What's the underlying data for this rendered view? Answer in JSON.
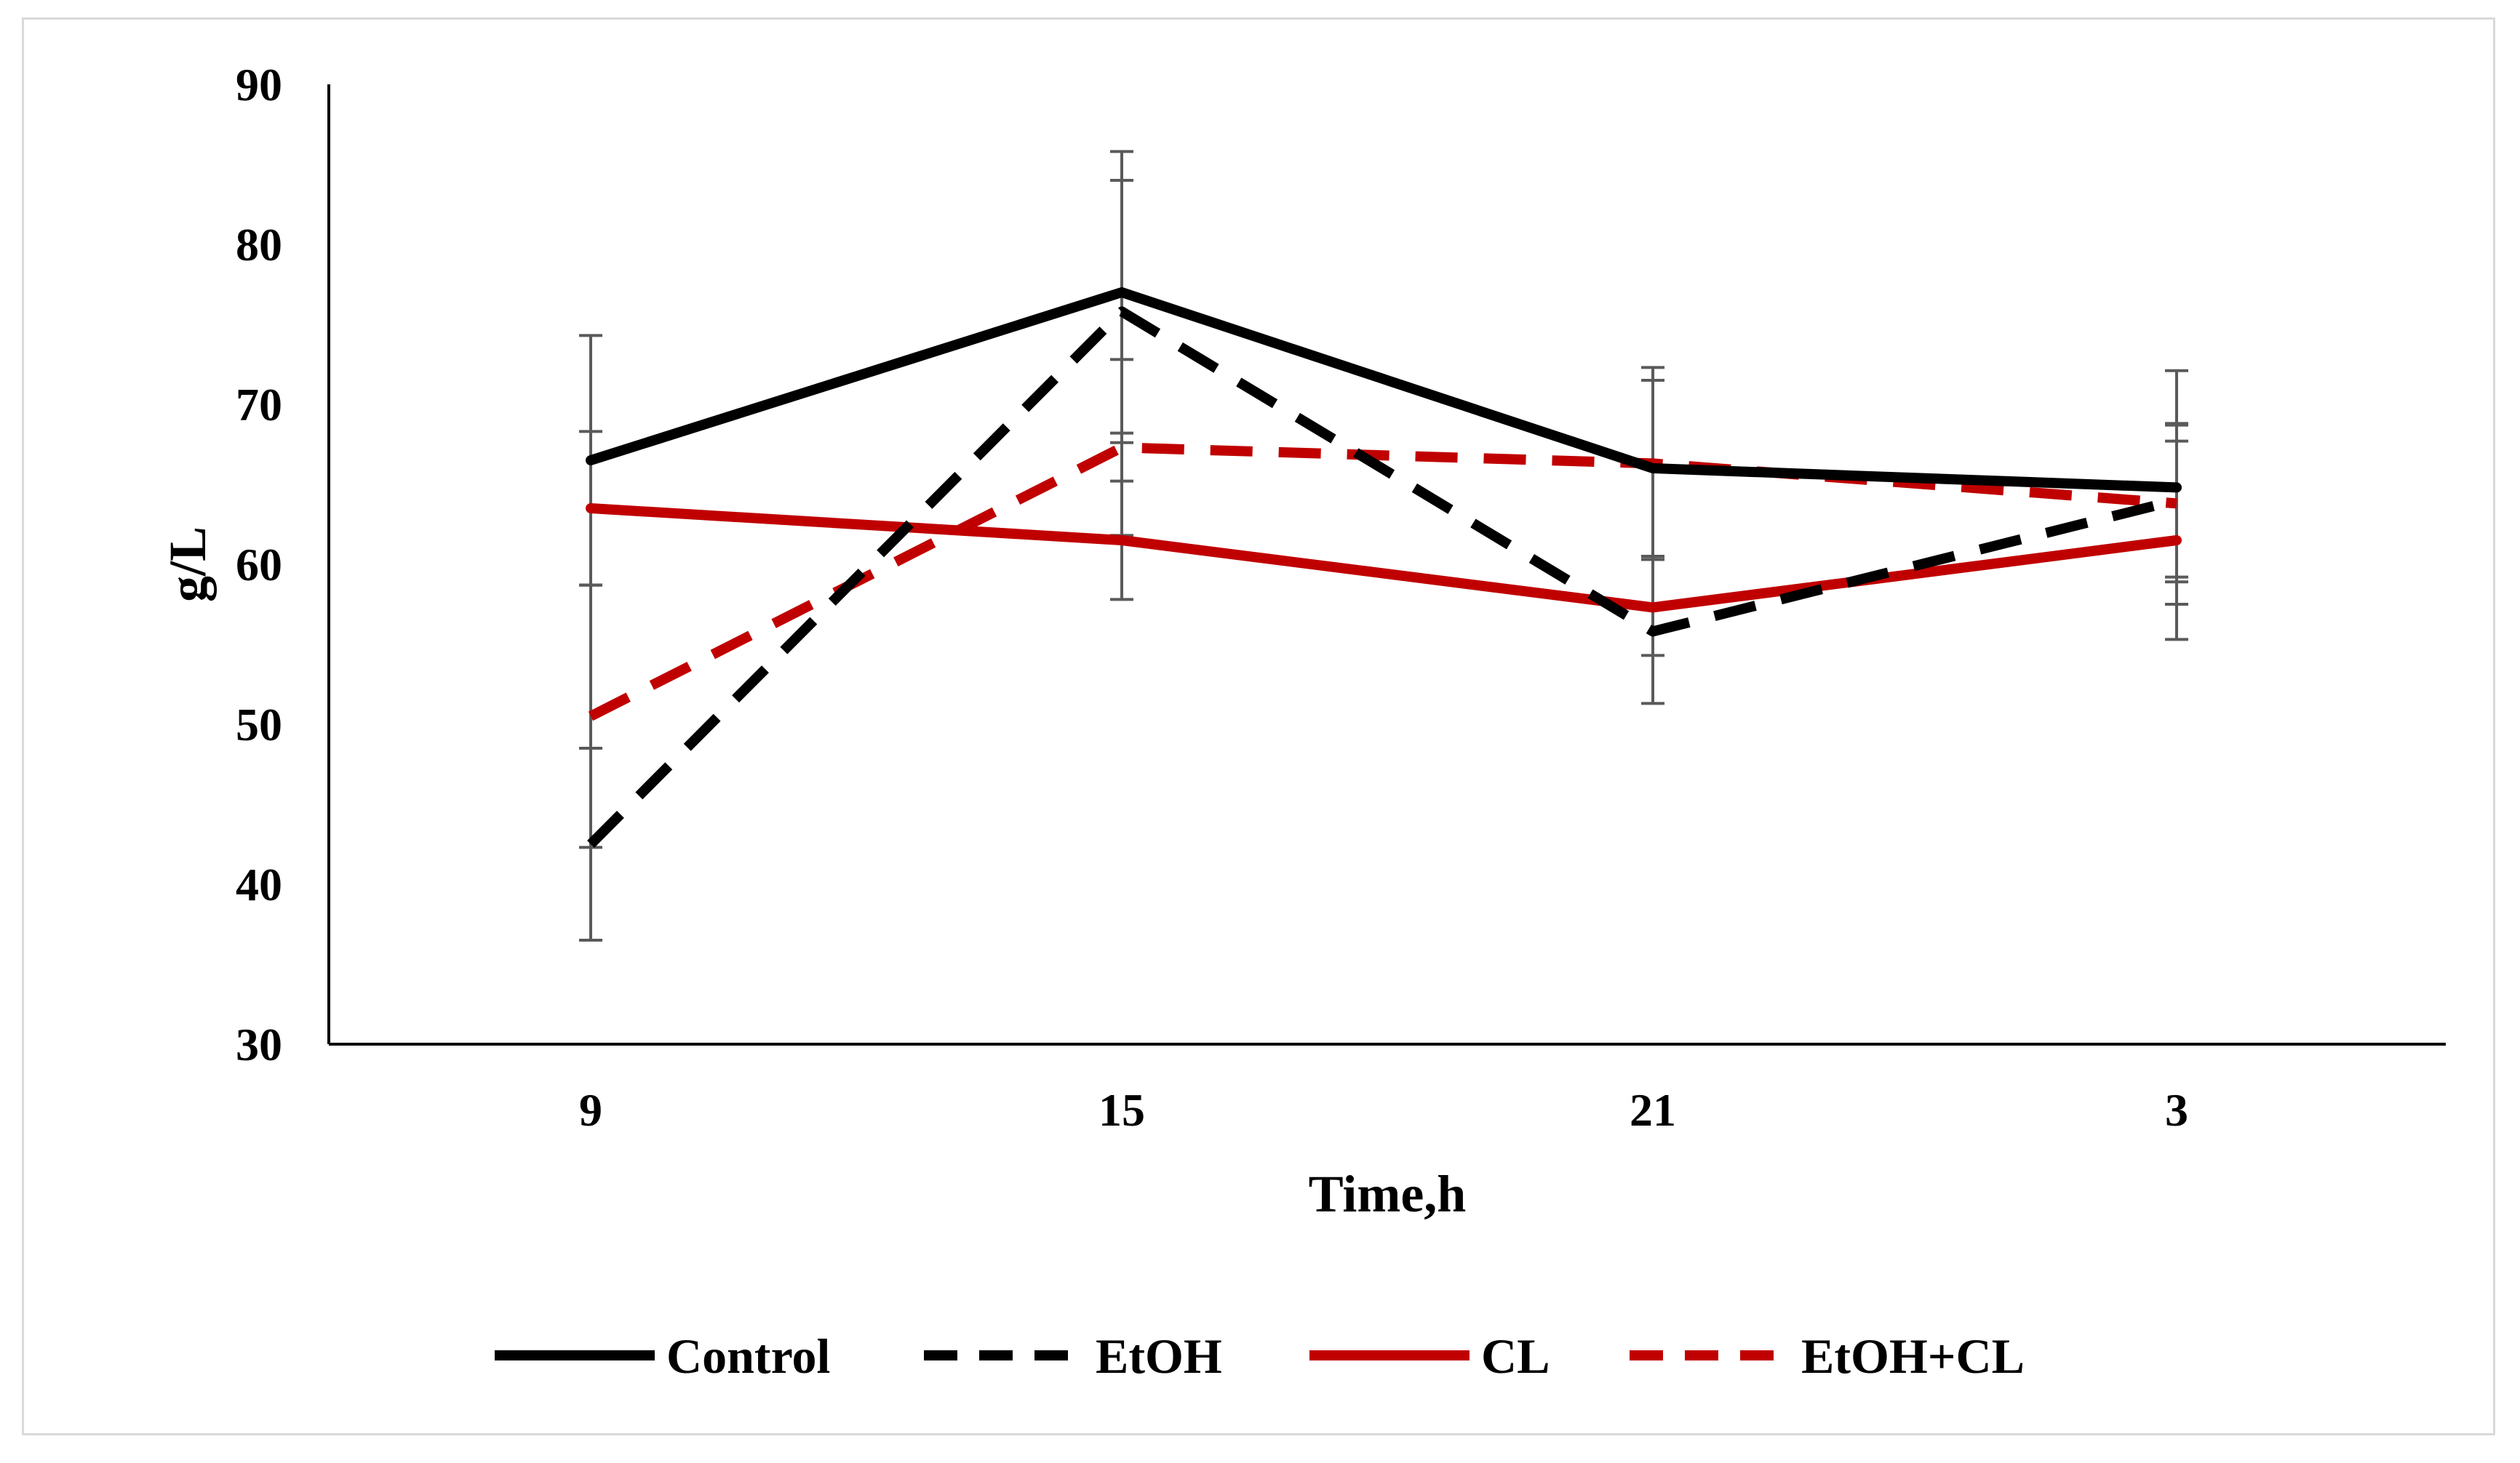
{
  "chart_data": {
    "type": "line",
    "xlabel": "Time,h",
    "ylabel": "g/L",
    "categories": [
      "9",
      "15",
      "21",
      "3"
    ],
    "ylim": [
      30,
      90
    ],
    "yticks": [
      30,
      40,
      50,
      60,
      70,
      80,
      90
    ],
    "grid": false,
    "legend_position": "bottom",
    "series": [
      {
        "name": "Control",
        "values": [
          66.5,
          77.0,
          66.0,
          64.8
        ],
        "error": [
          7.8,
          8.8,
          5.5,
          7.3
        ],
        "color": "#000000",
        "dash": "solid"
      },
      {
        "name": "EtOH",
        "values": [
          42.5,
          75.8,
          55.8,
          64.0
        ],
        "error": [
          6.0,
          8.2,
          4.5,
          4.8
        ],
        "color": "#000000",
        "dash": "dashed"
      },
      {
        "name": "CL",
        "values": [
          63.5,
          61.5,
          57.3,
          61.5
        ],
        "error": [
          4.8,
          3.7,
          3.0,
          6.2
        ],
        "color": "#c00000",
        "dash": "solid"
      },
      {
        "name": "EtOH+CL",
        "values": [
          50.5,
          67.3,
          66.3,
          63.8
        ],
        "error": [
          8.2,
          5.5,
          6.0,
          4.9
        ],
        "color": "#c00000",
        "dash": "dashed"
      }
    ]
  }
}
